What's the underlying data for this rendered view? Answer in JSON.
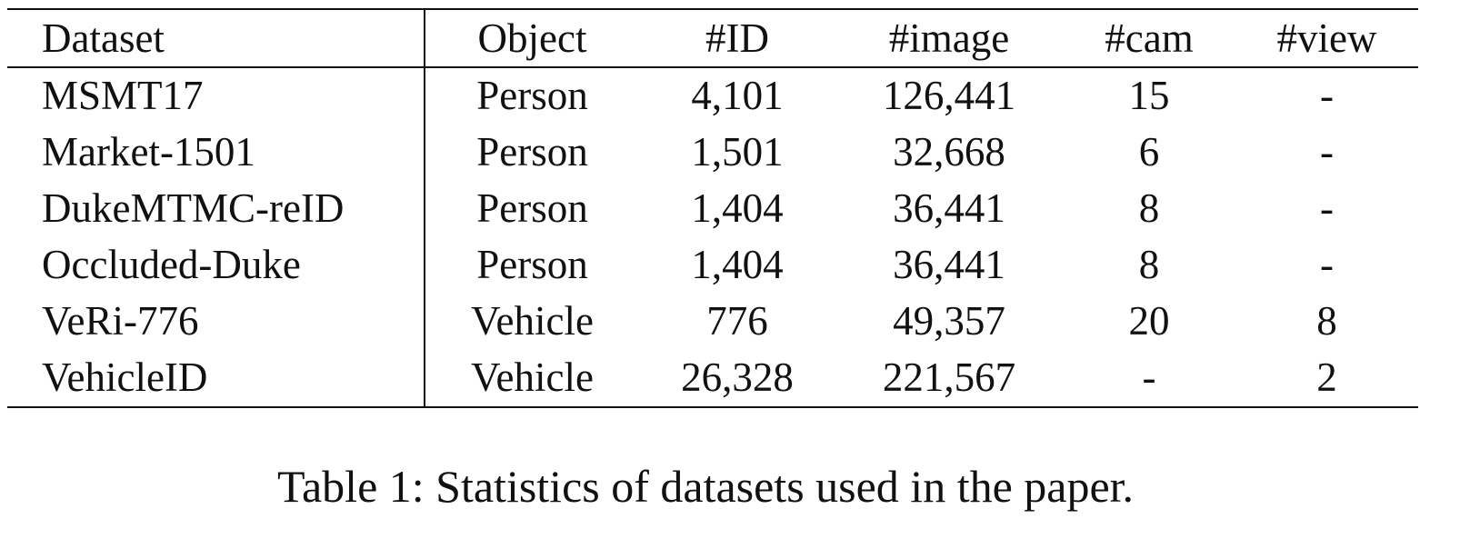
{
  "table": {
    "headers": {
      "dataset": "Dataset",
      "object": "Object",
      "id": "#ID",
      "image": "#image",
      "cam": "#cam",
      "view": "#view"
    },
    "rows": [
      {
        "dataset": "MSMT17",
        "object": "Person",
        "id": "4,101",
        "image": "126,441",
        "cam": "15",
        "view": "-"
      },
      {
        "dataset": "Market-1501",
        "object": "Person",
        "id": "1,501",
        "image": "32,668",
        "cam": "6",
        "view": "-"
      },
      {
        "dataset": "DukeMTMC-reID",
        "object": "Person",
        "id": "1,404",
        "image": "36,441",
        "cam": "8",
        "view": "-"
      },
      {
        "dataset": "Occluded-Duke",
        "object": "Person",
        "id": "1,404",
        "image": "36,441",
        "cam": "8",
        "view": "-"
      },
      {
        "dataset": "VeRi-776",
        "object": "Vehicle",
        "id": "776",
        "image": "49,357",
        "cam": "20",
        "view": "8"
      },
      {
        "dataset": "VehicleID",
        "object": "Vehicle",
        "id": "26,328",
        "image": "221,567",
        "cam": "-",
        "view": "2"
      }
    ]
  },
  "caption": "Table 1: Statistics of datasets used in the paper."
}
